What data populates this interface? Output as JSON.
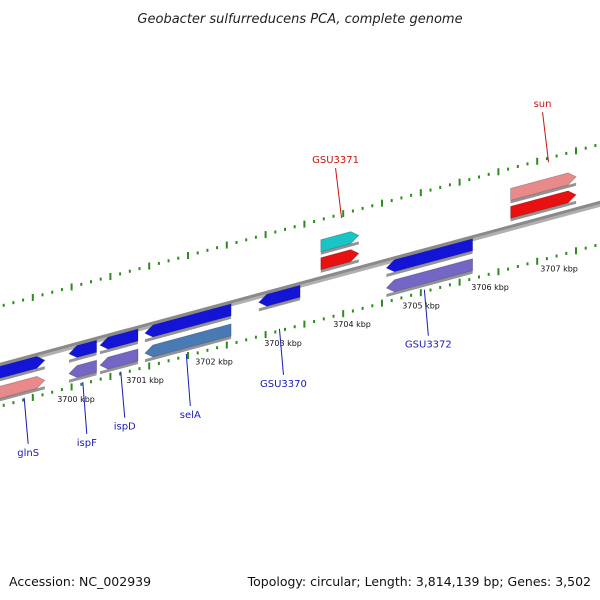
{
  "title": "Geobacter sulfurreducens PCA, complete genome",
  "footer": {
    "accession": "Accession: NC_002939",
    "summary": "Topology: circular; Length: 3,814,139 bp; Genes: 3,502"
  },
  "colors": {
    "axis": "#8a8a8a",
    "tick_major": "#2e8b1e",
    "tick_minor": "#2e8b1e",
    "label_blue": "#1a1ab4",
    "label_red": "#c81414",
    "blue": "#1414d6",
    "purple": "#7466c4",
    "steel": "#4a7ab4",
    "pink": "#e88a8a",
    "red": "#e81010",
    "cyan": "#18c4c4"
  },
  "kbp_labels": [
    {
      "text": "3700 kbp",
      "kbp": 3700
    },
    {
      "text": "3701 kbp",
      "kbp": 3701
    },
    {
      "text": "3702 kbp",
      "kbp": 3702
    },
    {
      "text": "3703 kbp",
      "kbp": 3703
    },
    {
      "text": "3704 kbp",
      "kbp": 3704
    },
    {
      "text": "3705 kbp",
      "kbp": 3705
    },
    {
      "text": "3706 kbp",
      "kbp": 3706
    },
    {
      "text": "3707 kbp",
      "kbp": 3707
    }
  ],
  "genes": [
    {
      "id": "glnS",
      "strand": "+",
      "start_kbp": 3699.0,
      "end_kbp": 3700.2,
      "color": "blue",
      "row": "fwd1"
    },
    {
      "id": "glnS-b",
      "strand": "+",
      "start_kbp": 3699.0,
      "end_kbp": 3700.2,
      "color": "pink",
      "row": "fwd2"
    },
    {
      "id": "ispF",
      "strand": "-",
      "start_kbp": 3700.55,
      "end_kbp": 3700.95,
      "color": "blue",
      "row": "fwd1"
    },
    {
      "id": "ispF-b",
      "strand": "-",
      "start_kbp": 3700.55,
      "end_kbp": 3700.95,
      "color": "purple",
      "row": "fwd2"
    },
    {
      "id": "ispD",
      "strand": "-",
      "start_kbp": 3701.0,
      "end_kbp": 3701.55,
      "color": "blue",
      "row": "fwd1"
    },
    {
      "id": "ispD-b",
      "strand": "-",
      "start_kbp": 3701.0,
      "end_kbp": 3701.55,
      "color": "purple",
      "row": "fwd2"
    },
    {
      "id": "selA",
      "strand": "-",
      "start_kbp": 3701.65,
      "end_kbp": 3702.9,
      "color": "blue",
      "row": "fwd1"
    },
    {
      "id": "selA-b",
      "strand": "-",
      "start_kbp": 3701.65,
      "end_kbp": 3702.9,
      "color": "steel",
      "row": "fwd2"
    },
    {
      "id": "GSU3370",
      "strand": "-",
      "start_kbp": 3703.3,
      "end_kbp": 3703.9,
      "color": "blue",
      "row": "fwd1"
    },
    {
      "id": "GSU3371",
      "strand": "+",
      "start_kbp": 3704.2,
      "end_kbp": 3704.75,
      "color": "cyan",
      "row": "rev2"
    },
    {
      "id": "GSU3371-b",
      "strand": "+",
      "start_kbp": 3704.2,
      "end_kbp": 3704.75,
      "color": "red",
      "row": "rev1"
    },
    {
      "id": "GSU3372",
      "strand": "-",
      "start_kbp": 3705.15,
      "end_kbp": 3706.4,
      "color": "blue",
      "row": "fwd1"
    },
    {
      "id": "GSU3372-b",
      "strand": "-",
      "start_kbp": 3705.15,
      "end_kbp": 3706.4,
      "color": "purple",
      "row": "fwd2"
    },
    {
      "id": "sun",
      "strand": "+",
      "start_kbp": 3706.95,
      "end_kbp": 3707.9,
      "color": "red",
      "row": "rev1"
    },
    {
      "id": "sun-b",
      "strand": "+",
      "start_kbp": 3706.95,
      "end_kbp": 3707.9,
      "color": "pink",
      "row": "rev2"
    }
  ],
  "gene_labels": [
    {
      "text": "glnS",
      "color": "label_blue",
      "kbp": 3699.9,
      "side": "below"
    },
    {
      "text": "ispF",
      "color": "label_blue",
      "kbp": 3700.75,
      "side": "below"
    },
    {
      "text": "ispD",
      "color": "label_blue",
      "kbp": 3701.3,
      "side": "below"
    },
    {
      "text": "selA",
      "color": "label_blue",
      "kbp": 3702.25,
      "side": "below"
    },
    {
      "text": "GSU3370",
      "color": "label_blue",
      "kbp": 3703.6,
      "side": "below"
    },
    {
      "text": "GSU3371",
      "color": "label_red",
      "kbp": 3704.5,
      "side": "above"
    },
    {
      "text": "GSU3372",
      "color": "label_blue",
      "kbp": 3705.7,
      "side": "below"
    },
    {
      "text": "sun",
      "color": "label_red",
      "kbp": 3707.5,
      "side": "above"
    }
  ]
}
